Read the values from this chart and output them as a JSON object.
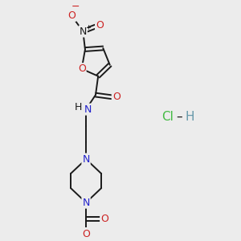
{
  "background_color": "#ececec",
  "bond_color": "#1a1a1a",
  "nitrogen_color": "#2222cc",
  "oxygen_color": "#cc2222",
  "carbon_color": "#1a1a1a",
  "cl_color": "#44bb44",
  "h_color": "#6699aa",
  "figsize": [
    3.0,
    3.0
  ],
  "dpi": 100,
  "xlim": [
    0,
    10
  ],
  "ylim": [
    0,
    10
  ]
}
